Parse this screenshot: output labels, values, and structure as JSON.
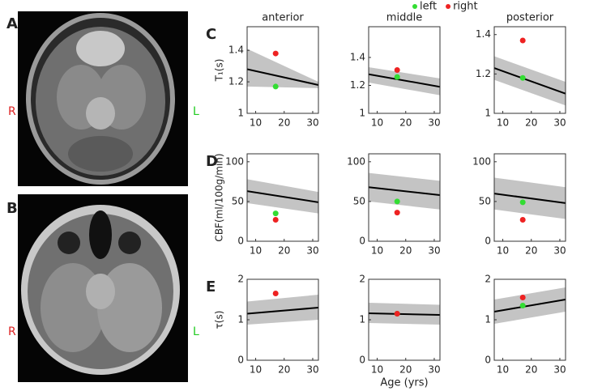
{
  "images": [
    {
      "label": "A",
      "left_marker": "R",
      "right_marker": "L"
    },
    {
      "label": "B",
      "left_marker": "R",
      "right_marker": "L"
    }
  ],
  "legend": [
    {
      "name": "left",
      "color": "#33dd33"
    },
    {
      "name": "right",
      "color": "#ee2222"
    }
  ],
  "chart_data": [
    {
      "type": "line",
      "panel_label": "C",
      "title": "anterior",
      "ylabel": "T₁(s)",
      "x": [
        7,
        32
      ],
      "xlim": [
        7,
        32
      ],
      "xticks": [
        10,
        20,
        30
      ],
      "ylim": [
        1,
        1.55
      ],
      "yticks": [
        1,
        1.2,
        1.4
      ],
      "fit": {
        "color": "#000000",
        "values": [
          1.28,
          1.18
        ]
      },
      "band": {
        "color": "#c4c4c4",
        "upper": [
          1.41,
          1.2
        ],
        "lower": [
          1.17,
          1.16
        ]
      },
      "points": {
        "x": [
          17,
          17
        ],
        "values": [
          1.17,
          1.38
        ],
        "colors": [
          "#33dd33",
          "#ee2222"
        ]
      }
    },
    {
      "type": "line",
      "title": "middle",
      "x": [
        7,
        32
      ],
      "xlim": [
        7,
        32
      ],
      "xticks": [
        10,
        20,
        30
      ],
      "ylim": [
        1,
        1.62
      ],
      "yticks": [
        1,
        1.2,
        1.4
      ],
      "fit": {
        "color": "#000000",
        "values": [
          1.28,
          1.19
        ]
      },
      "band": {
        "color": "#c4c4c4",
        "upper": [
          1.33,
          1.25
        ],
        "lower": [
          1.22,
          1.13
        ]
      },
      "points": {
        "x": [
          17,
          17
        ],
        "values": [
          1.26,
          1.31
        ],
        "colors": [
          "#33dd33",
          "#ee2222"
        ]
      }
    },
    {
      "type": "line",
      "title": "posterior",
      "x": [
        7,
        32
      ],
      "xlim": [
        7,
        32
      ],
      "xticks": [
        10,
        20,
        30
      ],
      "ylim": [
        1,
        1.44
      ],
      "yticks": [
        1,
        1.2,
        1.4
      ],
      "fit": {
        "color": "#000000",
        "values": [
          1.23,
          1.1
        ]
      },
      "band": {
        "color": "#c4c4c4",
        "upper": [
          1.29,
          1.16
        ],
        "lower": [
          1.17,
          1.04
        ]
      },
      "points": {
        "x": [
          17,
          17
        ],
        "values": [
          1.18,
          1.37
        ],
        "colors": [
          "#33dd33",
          "#ee2222"
        ]
      }
    },
    {
      "type": "line",
      "panel_label": "D",
      "ylabel": "CBF(ml/100g/min)",
      "x": [
        7,
        32
      ],
      "xlim": [
        7,
        32
      ],
      "xticks": [
        10,
        20,
        30
      ],
      "ylim": [
        0,
        110
      ],
      "yticks": [
        0,
        50,
        100
      ],
      "fit": {
        "color": "#000000",
        "values": [
          63,
          49
        ]
      },
      "band": {
        "color": "#c4c4c4",
        "upper": [
          78,
          62
        ],
        "lower": [
          48,
          35
        ]
      },
      "points": {
        "x": [
          17,
          17
        ],
        "values": [
          35,
          27
        ],
        "colors": [
          "#33dd33",
          "#ee2222"
        ]
      }
    },
    {
      "type": "line",
      "x": [
        7,
        32
      ],
      "xlim": [
        7,
        32
      ],
      "xticks": [
        10,
        20,
        30
      ],
      "ylim": [
        0,
        110
      ],
      "yticks": [
        0,
        50,
        100
      ],
      "fit": {
        "color": "#000000",
        "values": [
          68,
          58
        ]
      },
      "band": {
        "color": "#c4c4c4",
        "upper": [
          86,
          76
        ],
        "lower": [
          50,
          40
        ]
      },
      "points": {
        "x": [
          17,
          17
        ],
        "values": [
          50,
          36
        ],
        "colors": [
          "#33dd33",
          "#ee2222"
        ]
      }
    },
    {
      "type": "line",
      "x": [
        7,
        32
      ],
      "xlim": [
        7,
        32
      ],
      "xticks": [
        10,
        20,
        30
      ],
      "ylim": [
        0,
        110
      ],
      "yticks": [
        0,
        50,
        100
      ],
      "fit": {
        "color": "#000000",
        "values": [
          60,
          48
        ]
      },
      "band": {
        "color": "#c4c4c4",
        "upper": [
          80,
          68
        ],
        "lower": [
          40,
          28
        ]
      },
      "points": {
        "x": [
          17,
          17
        ],
        "values": [
          49,
          27
        ],
        "colors": [
          "#33dd33",
          "#ee2222"
        ]
      }
    },
    {
      "type": "line",
      "panel_label": "E",
      "ylabel": "τ(s)",
      "x": [
        7,
        32
      ],
      "xlim": [
        7,
        32
      ],
      "xticks": [
        10,
        20,
        30
      ],
      "ylim": [
        0,
        2
      ],
      "yticks": [
        0,
        1,
        2
      ],
      "fit": {
        "color": "#000000",
        "values": [
          1.15,
          1.3
        ]
      },
      "band": {
        "color": "#c4c4c4",
        "upper": [
          1.45,
          1.62
        ],
        "lower": [
          0.88,
          1.0
        ]
      },
      "points": {
        "x": [
          17
        ],
        "values": [
          1.65
        ],
        "colors": [
          "#ee2222"
        ]
      }
    },
    {
      "type": "line",
      "xlabel": "Age (yrs)",
      "x": [
        7,
        32
      ],
      "xlim": [
        7,
        32
      ],
      "xticks": [
        10,
        20,
        30
      ],
      "ylim": [
        0,
        2
      ],
      "yticks": [
        0,
        1,
        2
      ],
      "fit": {
        "color": "#000000",
        "values": [
          1.16,
          1.12
        ]
      },
      "band": {
        "color": "#c4c4c4",
        "upper": [
          1.42,
          1.37
        ],
        "lower": [
          0.92,
          0.88
        ]
      },
      "points": {
        "x": [
          17,
          17
        ],
        "values": [
          1.15,
          1.15
        ],
        "colors": [
          "#33dd33",
          "#ee2222"
        ]
      }
    },
    {
      "type": "line",
      "x": [
        7,
        32
      ],
      "xlim": [
        7,
        32
      ],
      "xticks": [
        10,
        20,
        30
      ],
      "ylim": [
        0,
        2
      ],
      "yticks": [
        0,
        1,
        2
      ],
      "fit": {
        "color": "#000000",
        "values": [
          1.2,
          1.5
        ]
      },
      "band": {
        "color": "#c4c4c4",
        "upper": [
          1.5,
          1.8
        ],
        "lower": [
          0.9,
          1.2
        ]
      },
      "points": {
        "x": [
          17,
          17
        ],
        "values": [
          1.35,
          1.55
        ],
        "colors": [
          "#33dd33",
          "#ee2222"
        ]
      }
    }
  ]
}
